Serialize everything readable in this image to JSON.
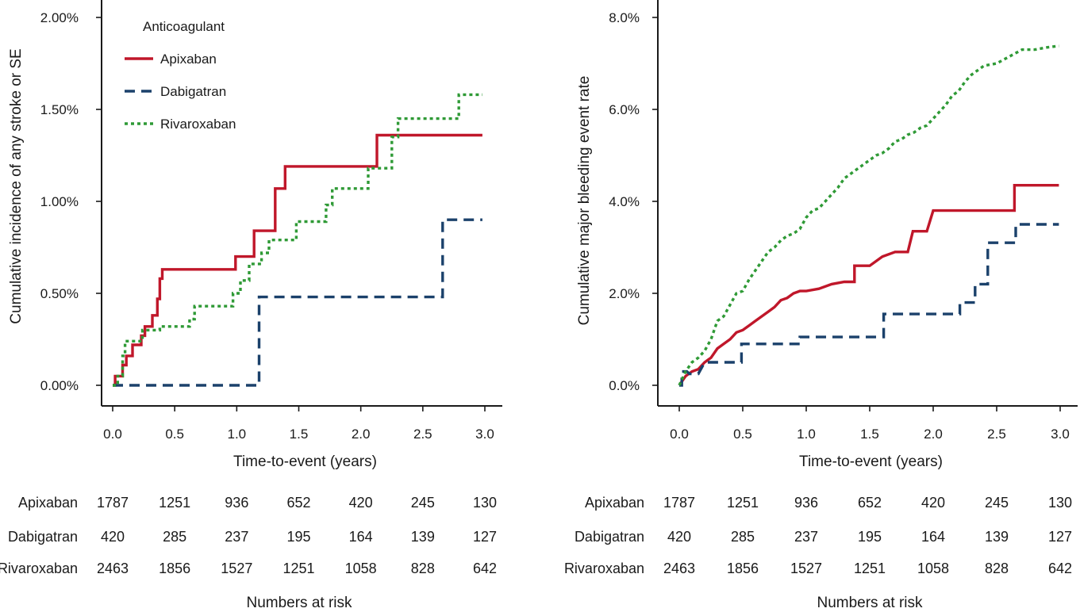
{
  "chart_data": [
    {
      "type": "line",
      "title": "",
      "xlabel": "Time-to-event (years)",
      "ylabel": "Cumulative incidence of any stroke or SE",
      "xlim": [
        0,
        3
      ],
      "ylim": [
        0,
        2.0
      ],
      "x_ticks": [
        "0.0",
        "0.5",
        "1.0",
        "1.5",
        "2.0",
        "2.5",
        "3.0"
      ],
      "y_ticks": [
        "0.00%",
        "0.50%",
        "1.00%",
        "1.50%",
        "2.00%"
      ],
      "legend": {
        "title": "Anticoagulant",
        "position": "top-left"
      },
      "series": [
        {
          "name": "Apixaban",
          "color": "#c0172a",
          "style": "solid",
          "points": [
            [
              0,
              0
            ],
            [
              0.02,
              0
            ],
            [
              0.02,
              0.05
            ],
            [
              0.08,
              0.05
            ],
            [
              0.08,
              0.11
            ],
            [
              0.11,
              0.11
            ],
            [
              0.11,
              0.16
            ],
            [
              0.16,
              0.16
            ],
            [
              0.16,
              0.22
            ],
            [
              0.23,
              0.22
            ],
            [
              0.23,
              0.27
            ],
            [
              0.26,
              0.27
            ],
            [
              0.26,
              0.32
            ],
            [
              0.32,
              0.32
            ],
            [
              0.32,
              0.38
            ],
            [
              0.36,
              0.38
            ],
            [
              0.36,
              0.47
            ],
            [
              0.38,
              0.47
            ],
            [
              0.38,
              0.58
            ],
            [
              0.4,
              0.58
            ],
            [
              0.4,
              0.63
            ],
            [
              0.99,
              0.63
            ],
            [
              0.99,
              0.7
            ],
            [
              1.14,
              0.7
            ],
            [
              1.14,
              0.84
            ],
            [
              1.31,
              0.84
            ],
            [
              1.31,
              1.07
            ],
            [
              1.39,
              1.07
            ],
            [
              1.39,
              1.19
            ],
            [
              2.13,
              1.19
            ],
            [
              2.13,
              1.36
            ],
            [
              2.98,
              1.36
            ]
          ]
        },
        {
          "name": "Dabigatran",
          "color": "#1b416b",
          "style": "dashed",
          "points": [
            [
              0,
              0
            ],
            [
              1.18,
              0
            ],
            [
              1.18,
              0.48
            ],
            [
              2.66,
              0.48
            ],
            [
              2.66,
              0.9
            ],
            [
              2.98,
              0.9
            ]
          ]
        },
        {
          "name": "Rivaroxaban",
          "color": "#2f9a36",
          "style": "dotted",
          "points": [
            [
              0,
              0
            ],
            [
              0.04,
              0
            ],
            [
              0.04,
              0.05
            ],
            [
              0.08,
              0.05
            ],
            [
              0.08,
              0.16
            ],
            [
              0.1,
              0.16
            ],
            [
              0.1,
              0.24
            ],
            [
              0.24,
              0.24
            ],
            [
              0.24,
              0.3
            ],
            [
              0.38,
              0.3
            ],
            [
              0.38,
              0.32
            ],
            [
              0.62,
              0.32
            ],
            [
              0.62,
              0.36
            ],
            [
              0.66,
              0.36
            ],
            [
              0.66,
              0.43
            ],
            [
              0.97,
              0.43
            ],
            [
              0.97,
              0.5
            ],
            [
              1.03,
              0.5
            ],
            [
              1.03,
              0.57
            ],
            [
              1.1,
              0.57
            ],
            [
              1.1,
              0.66
            ],
            [
              1.2,
              0.66
            ],
            [
              1.2,
              0.72
            ],
            [
              1.26,
              0.72
            ],
            [
              1.26,
              0.79
            ],
            [
              1.48,
              0.79
            ],
            [
              1.48,
              0.89
            ],
            [
              1.72,
              0.89
            ],
            [
              1.72,
              0.98
            ],
            [
              1.77,
              0.98
            ],
            [
              1.77,
              1.07
            ],
            [
              2.06,
              1.07
            ],
            [
              2.06,
              1.18
            ],
            [
              2.25,
              1.18
            ],
            [
              2.25,
              1.35
            ],
            [
              2.3,
              1.35
            ],
            [
              2.3,
              1.45
            ],
            [
              2.79,
              1.45
            ],
            [
              2.79,
              1.58
            ],
            [
              2.98,
              1.58
            ]
          ]
        }
      ],
      "risk_table": {
        "title": "Numbers at risk",
        "columns_x": [
          0.0,
          0.5,
          1.0,
          1.5,
          2.0,
          2.5,
          3.0
        ],
        "rows": [
          {
            "label": "Apixaban",
            "values": [
              "1787",
              "1251",
              "936",
              "652",
              "420",
              "245",
              "130"
            ]
          },
          {
            "label": "Dabigatran",
            "values": [
              "420",
              "285",
              "237",
              "195",
              "164",
              "139",
              "127"
            ]
          },
          {
            "label": "Rivaroxaban",
            "values": [
              "2463",
              "1856",
              "1527",
              "1251",
              "1058",
              "828",
              "642"
            ]
          }
        ]
      }
    },
    {
      "type": "line",
      "title": "",
      "xlabel": "Time-to-event (years)",
      "ylabel": "Cumulative major bleeding event rate",
      "xlim": [
        0,
        3
      ],
      "ylim": [
        0,
        8.0
      ],
      "x_ticks": [
        "0.0",
        "0.5",
        "1.0",
        "1.5",
        "2.0",
        "2.5",
        "3.0"
      ],
      "y_ticks": [
        "0.0%",
        "2.0%",
        "4.0%",
        "6.0%",
        "8.0%"
      ],
      "series": [
        {
          "name": "Apixaban",
          "color": "#c0172a",
          "style": "solid",
          "points": [
            [
              0,
              0
            ],
            [
              0.05,
              0.2
            ],
            [
              0.1,
              0.3
            ],
            [
              0.15,
              0.35
            ],
            [
              0.2,
              0.5
            ],
            [
              0.25,
              0.6
            ],
            [
              0.3,
              0.8
            ],
            [
              0.35,
              0.9
            ],
            [
              0.4,
              1.0
            ],
            [
              0.45,
              1.15
            ],
            [
              0.5,
              1.2
            ],
            [
              0.55,
              1.3
            ],
            [
              0.6,
              1.4
            ],
            [
              0.65,
              1.5
            ],
            [
              0.7,
              1.6
            ],
            [
              0.75,
              1.7
            ],
            [
              0.8,
              1.85
            ],
            [
              0.85,
              1.9
            ],
            [
              0.9,
              2.0
            ],
            [
              0.95,
              2.05
            ],
            [
              1.0,
              2.05
            ],
            [
              1.1,
              2.1
            ],
            [
              1.2,
              2.2
            ],
            [
              1.3,
              2.25
            ],
            [
              1.38,
              2.25
            ],
            [
              1.38,
              2.6
            ],
            [
              1.5,
              2.6
            ],
            [
              1.6,
              2.8
            ],
            [
              1.7,
              2.9
            ],
            [
              1.8,
              2.9
            ],
            [
              1.84,
              3.35
            ],
            [
              1.95,
              3.35
            ],
            [
              2.0,
              3.8
            ],
            [
              2.64,
              3.8
            ],
            [
              2.64,
              4.35
            ],
            [
              2.99,
              4.35
            ]
          ]
        },
        {
          "name": "Dabigatran",
          "color": "#1b416b",
          "style": "dashed",
          "points": [
            [
              0,
              0
            ],
            [
              0.02,
              0
            ],
            [
              0.02,
              0.3
            ],
            [
              0.06,
              0.3
            ],
            [
              0.08,
              0.25
            ],
            [
              0.15,
              0.25
            ],
            [
              0.2,
              0.5
            ],
            [
              0.49,
              0.5
            ],
            [
              0.49,
              0.9
            ],
            [
              0.95,
              0.9
            ],
            [
              0.95,
              1.05
            ],
            [
              1.61,
              1.05
            ],
            [
              1.61,
              1.55
            ],
            [
              2.21,
              1.55
            ],
            [
              2.21,
              1.8
            ],
            [
              2.33,
              1.8
            ],
            [
              2.33,
              2.2
            ],
            [
              2.43,
              2.2
            ],
            [
              2.43,
              3.1
            ],
            [
              2.65,
              3.1
            ],
            [
              2.65,
              3.5
            ],
            [
              2.99,
              3.5
            ]
          ]
        },
        {
          "name": "Rivaroxaban",
          "color": "#2f9a36",
          "style": "dotted",
          "points": [
            [
              0,
              0
            ],
            [
              0.05,
              0.3
            ],
            [
              0.1,
              0.5
            ],
            [
              0.15,
              0.6
            ],
            [
              0.2,
              0.75
            ],
            [
              0.25,
              1.0
            ],
            [
              0.3,
              1.4
            ],
            [
              0.35,
              1.5
            ],
            [
              0.4,
              1.75
            ],
            [
              0.45,
              2.0
            ],
            [
              0.5,
              2.05
            ],
            [
              0.55,
              2.3
            ],
            [
              0.6,
              2.5
            ],
            [
              0.65,
              2.7
            ],
            [
              0.7,
              2.9
            ],
            [
              0.75,
              3.0
            ],
            [
              0.8,
              3.15
            ],
            [
              0.85,
              3.25
            ],
            [
              0.9,
              3.3
            ],
            [
              0.95,
              3.4
            ],
            [
              1.0,
              3.65
            ],
            [
              1.05,
              3.8
            ],
            [
              1.1,
              3.85
            ],
            [
              1.15,
              4.0
            ],
            [
              1.2,
              4.15
            ],
            [
              1.25,
              4.3
            ],
            [
              1.3,
              4.5
            ],
            [
              1.35,
              4.6
            ],
            [
              1.4,
              4.7
            ],
            [
              1.45,
              4.8
            ],
            [
              1.5,
              4.9
            ],
            [
              1.55,
              5.0
            ],
            [
              1.6,
              5.05
            ],
            [
              1.65,
              5.15
            ],
            [
              1.7,
              5.3
            ],
            [
              1.75,
              5.35
            ],
            [
              1.8,
              5.45
            ],
            [
              1.85,
              5.5
            ],
            [
              1.9,
              5.6
            ],
            [
              1.95,
              5.65
            ],
            [
              2.0,
              5.8
            ],
            [
              2.05,
              5.95
            ],
            [
              2.1,
              6.1
            ],
            [
              2.15,
              6.3
            ],
            [
              2.2,
              6.4
            ],
            [
              2.25,
              6.6
            ],
            [
              2.3,
              6.75
            ],
            [
              2.35,
              6.85
            ],
            [
              2.4,
              6.95
            ],
            [
              2.5,
              7.0
            ],
            [
              2.6,
              7.15
            ],
            [
              2.7,
              7.3
            ],
            [
              2.8,
              7.3
            ],
            [
              2.9,
              7.35
            ],
            [
              2.99,
              7.38
            ]
          ]
        }
      ],
      "risk_table": {
        "title": "Numbers at risk",
        "columns_x": [
          0.0,
          0.5,
          1.0,
          1.5,
          2.0,
          2.5,
          3.0
        ],
        "rows": [
          {
            "label": "Apixaban",
            "values": [
              "1787",
              "1251",
              "936",
              "652",
              "420",
              "245",
              "130"
            ]
          },
          {
            "label": "Dabigatran",
            "values": [
              "420",
              "285",
              "237",
              "195",
              "164",
              "139",
              "127"
            ]
          },
          {
            "label": "Rivaroxaban",
            "values": [
              "2463",
              "1856",
              "1527",
              "1251",
              "1058",
              "828",
              "642"
            ]
          }
        ]
      }
    }
  ]
}
